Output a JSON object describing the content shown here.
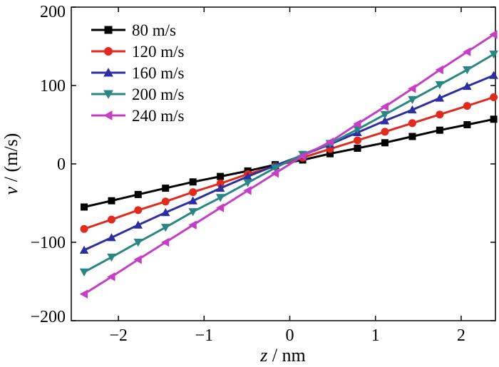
{
  "chart_data": {
    "type": "line",
    "xlabel_var": "z",
    "xlabel_unit": " / nm",
    "ylabel_var": "v",
    "ylabel_unit": " / (m/s)",
    "xlim": [
      -2.55,
      2.4
    ],
    "ylim": [
      -200,
      200
    ],
    "xticks": [
      -2,
      -1,
      0,
      1,
      2
    ],
    "xtick_labels": [
      "−2",
      "−1",
      "0",
      "1",
      "2"
    ],
    "yticks": [
      -200,
      -100,
      0,
      100,
      200
    ],
    "ytick_labels": [
      "−200",
      "−100",
      "0",
      "100",
      "200"
    ],
    "grid": false,
    "legend_position": "top-left",
    "x": [
      -2.4,
      -2.08,
      -1.77,
      -1.45,
      -1.13,
      -0.81,
      -0.49,
      -0.17,
      0.15,
      0.47,
      0.79,
      1.11,
      1.43,
      1.75,
      2.07,
      2.38
    ],
    "series": [
      {
        "name": "80 m/s",
        "color": "#000000",
        "marker": "square",
        "values": [
          -55,
          -47,
          -39,
          -31,
          -23,
          -16,
          -9,
          -1,
          5,
          13,
          20,
          27,
          35,
          43,
          50,
          57
        ]
      },
      {
        "name": "120 m/s",
        "color": "#e02a1e",
        "marker": "circle",
        "values": [
          -83,
          -71,
          -59,
          -48,
          -36,
          -25,
          -13,
          -3,
          8,
          19,
          30,
          41,
          52,
          63,
          74,
          85
        ]
      },
      {
        "name": "160 m/s",
        "color": "#2d2ea0",
        "marker": "triangle-up",
        "values": [
          -110,
          -94,
          -78,
          -62,
          -47,
          -31,
          -16,
          -2,
          11,
          25,
          40,
          55,
          69,
          84,
          99,
          113
        ]
      },
      {
        "name": "200 m/s",
        "color": "#2a8585",
        "marker": "triangle-down",
        "values": [
          -138,
          -119,
          -100,
          -81,
          -61,
          -43,
          -24,
          -5,
          12,
          26,
          44,
          63,
          82,
          101,
          120,
          140
        ]
      },
      {
        "name": "240 m/s",
        "color": "#c43fc4",
        "marker": "triangle-left",
        "values": [
          -166,
          -144,
          -122,
          -100,
          -78,
          -56,
          -34,
          -12,
          10,
          28,
          51,
          73,
          96,
          120,
          143,
          165
        ]
      }
    ]
  }
}
